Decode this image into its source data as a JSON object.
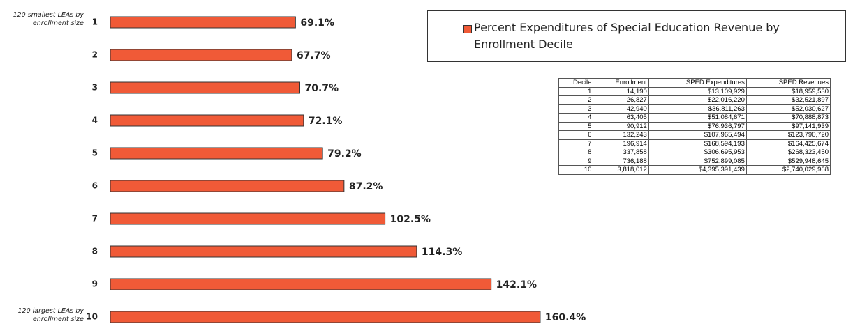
{
  "chart_data": {
    "type": "bar",
    "orientation": "horizontal",
    "categories": [
      "1",
      "2",
      "3",
      "4",
      "5",
      "6",
      "7",
      "8",
      "9",
      "10"
    ],
    "series": [
      {
        "name": "Percent Expenditures of Special Education Revenue by Enrollment Decile",
        "color": "#f05a37",
        "values": [
          69.1,
          67.7,
          70.7,
          72.1,
          79.2,
          87.2,
          102.5,
          114.3,
          142.1,
          160.4
        ],
        "value_labels": [
          "69.1%",
          "67.7%",
          "70.7%",
          "72.1%",
          "79.2%",
          "87.2%",
          "102.5%",
          "114.3%",
          "142.1%",
          "160.4%"
        ]
      }
    ],
    "xlim": [
      0,
      200
    ],
    "annotations": [
      "120 smallest LEAs by enrollment size",
      "120 largest LEAs by enrollment size"
    ]
  },
  "table": {
    "header": [
      "Decile",
      "Enrollment",
      "SPED Expenditures",
      "SPED Revenues"
    ],
    "rows": [
      [
        "1",
        "14,190",
        "$13,109,929",
        "$18,959,530"
      ],
      [
        "2",
        "26,827",
        "$22,016,220",
        "$32,521,897"
      ],
      [
        "3",
        "42,940",
        "$36,811,263",
        "$52,030,627"
      ],
      [
        "4",
        "63,405",
        "$51,084,671",
        "$70,888,873"
      ],
      [
        "5",
        "90,912",
        "$76,936,797",
        "$97,141,939"
      ],
      [
        "6",
        "132,243",
        "$107,965,494",
        "$123,790,720"
      ],
      [
        "7",
        "196,914",
        "$168,594,193",
        "$164,425,674"
      ],
      [
        "8",
        "337,858",
        "$306,695,953",
        "$268,323,450"
      ],
      [
        "9",
        "736,188",
        "$752,899,085",
        "$529,948,645"
      ],
      [
        "10",
        "3,818,012",
        "$4,395,391,439",
        "$2,740,029,968"
      ]
    ]
  }
}
